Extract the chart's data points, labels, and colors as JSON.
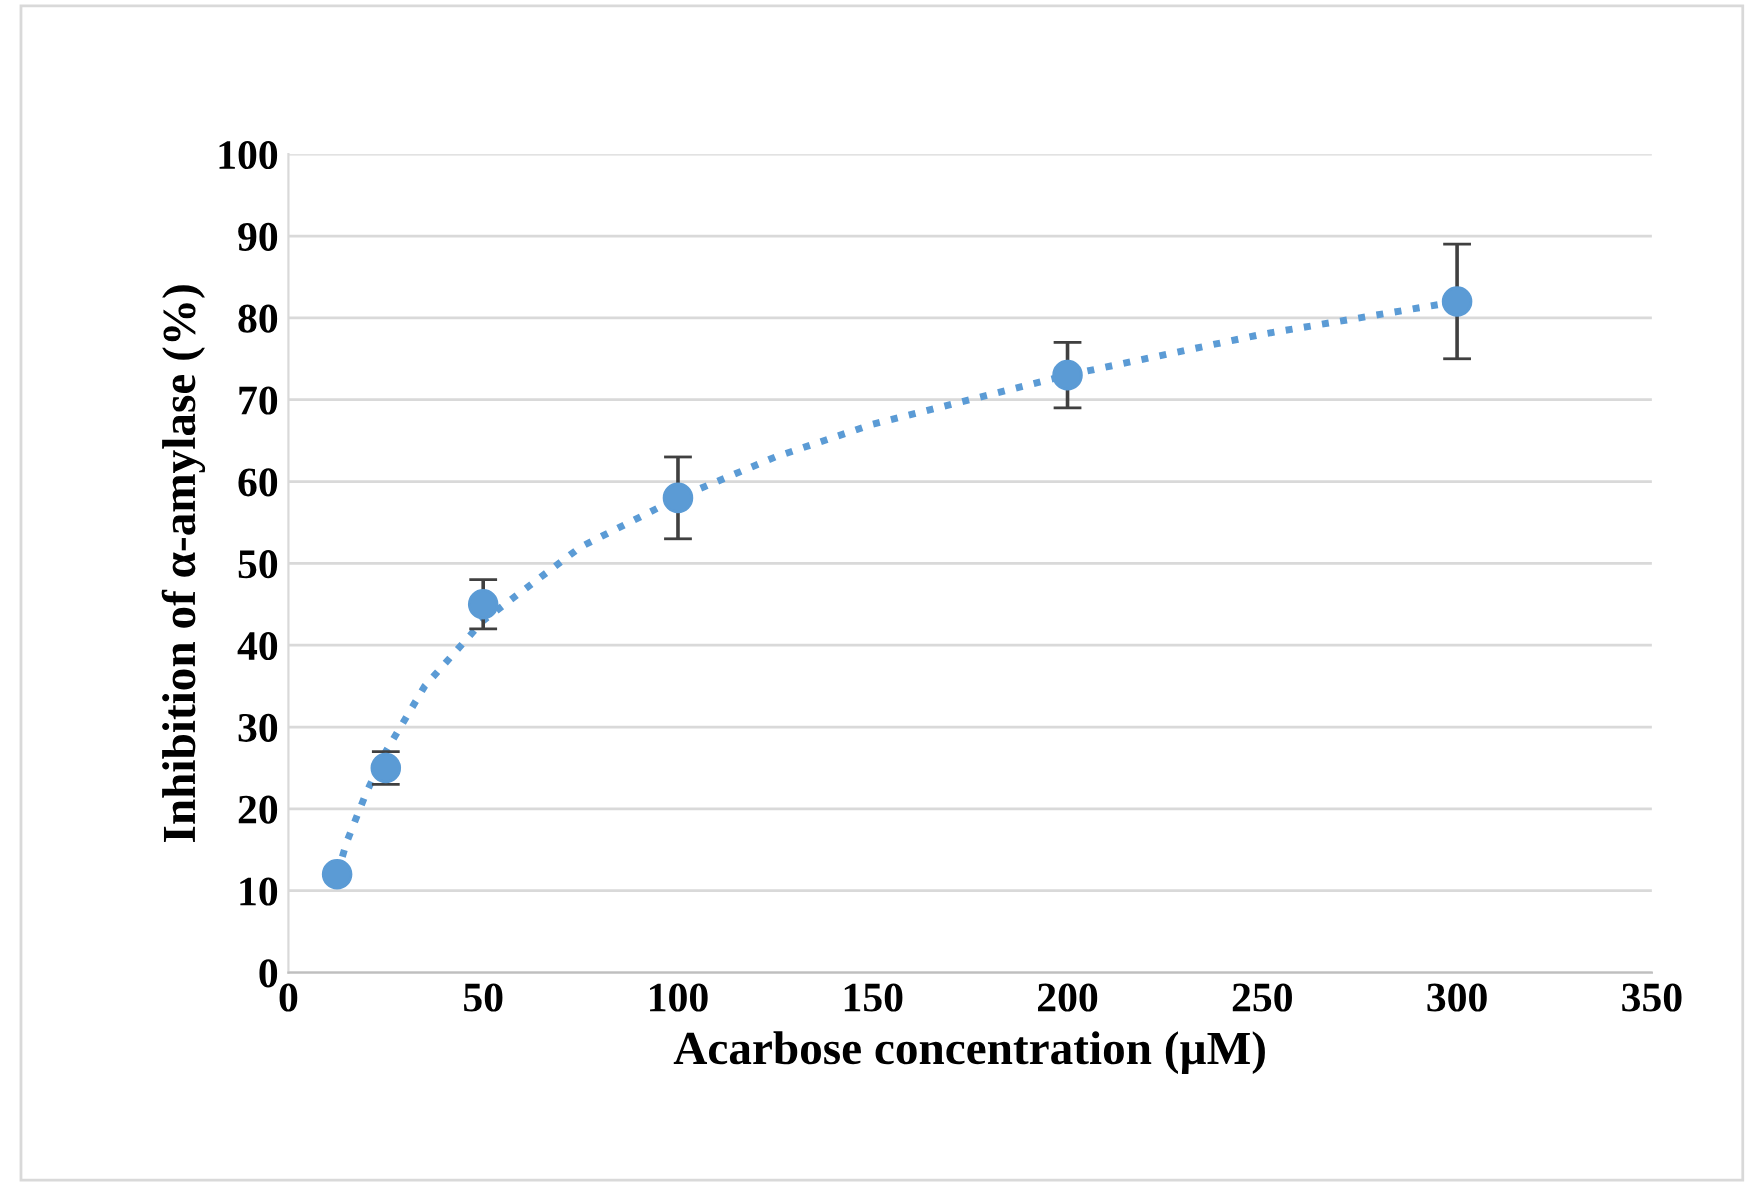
{
  "chart_data": {
    "type": "scatter",
    "xlabel": "Acarbose concentration (µM)",
    "ylabel": "Inhibition of α-amylase (%)",
    "xlim": [
      0,
      350
    ],
    "xticks": [
      0,
      50,
      100,
      150,
      200,
      250,
      300,
      350
    ],
    "ylim": [
      0,
      100
    ],
    "yticks": [
      0,
      10,
      20,
      30,
      40,
      50,
      60,
      70,
      80,
      90,
      100
    ],
    "grid": "y",
    "legend": false,
    "marker": "circle",
    "series": [
      {
        "color": "#5b9bd5",
        "x": [
          12.5,
          25,
          50,
          100,
          200,
          300
        ],
        "values": [
          12,
          25,
          45,
          58,
          73,
          82
        ],
        "errors": [
          null,
          2,
          3,
          5,
          4,
          7
        ]
      },
      {
        "type": "line",
        "color": "#5b9bd5",
        "line_style": "dotted",
        "marker": "none",
        "x": [
          12.5,
          15,
          20,
          25,
          35,
          50,
          75,
          100,
          125,
          150,
          200,
          250,
          300
        ],
        "values": [
          12,
          16,
          22,
          27,
          35,
          43,
          52,
          58,
          63,
          67,
          73,
          78,
          82
        ]
      }
    ]
  }
}
